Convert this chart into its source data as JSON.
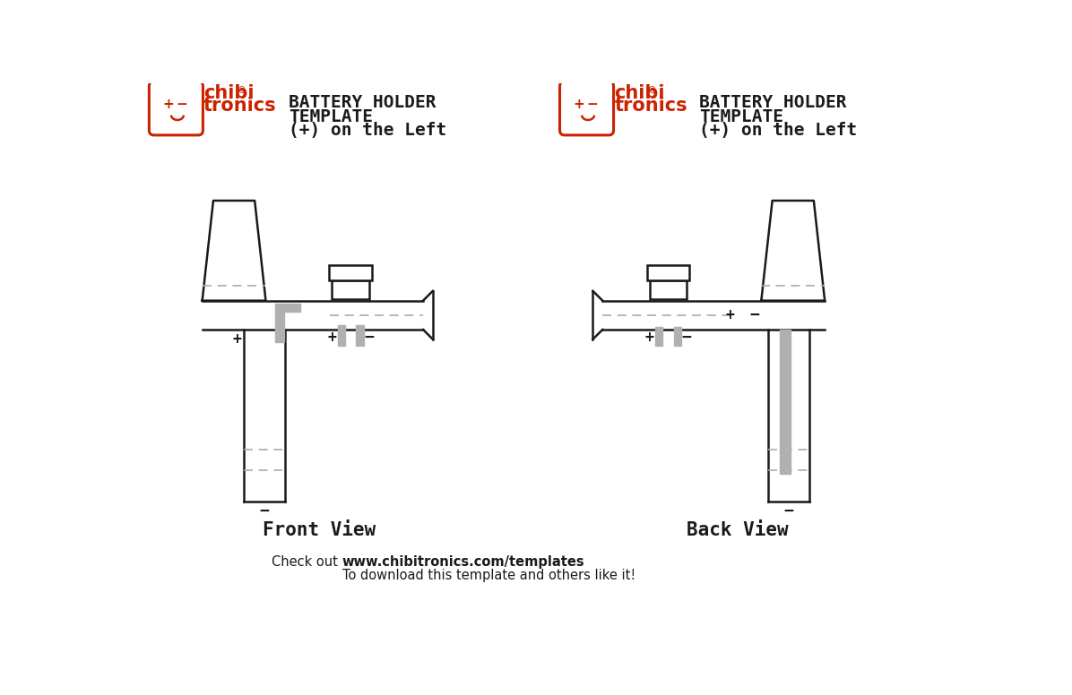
{
  "bg_color": "#ffffff",
  "line_color": "#1a1a1a",
  "gray_color": "#b0b0b0",
  "red_color": "#cc2200",
  "dashed_color": "#aaaaaa",
  "view1_label": "Front View",
  "view2_label": "Back View",
  "footer_normal": "Check out ",
  "footer_bold": "www.chibitronics.com/templates",
  "footer_normal2": "To download this template and others like it!"
}
